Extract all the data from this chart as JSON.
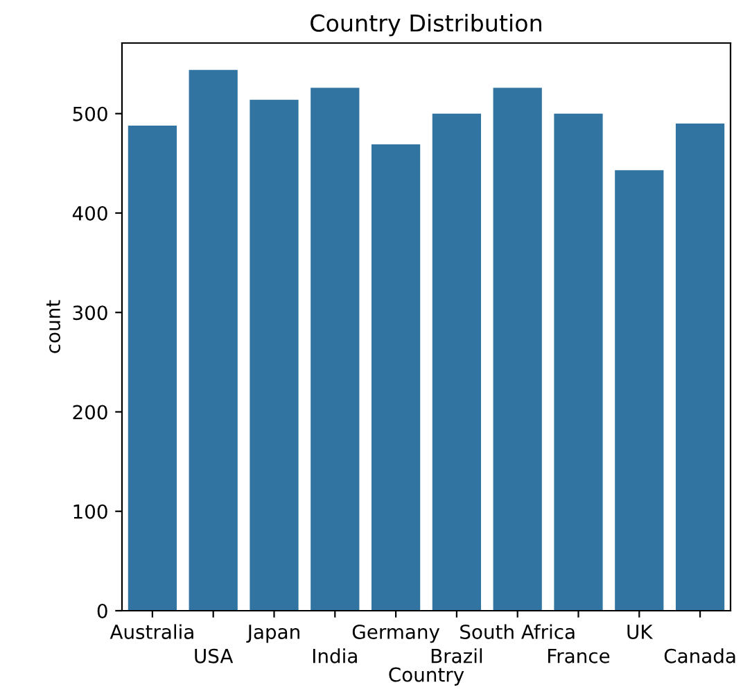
{
  "chart_data": {
    "type": "bar",
    "title": "Country Distribution",
    "xlabel": "Country",
    "ylabel": "count",
    "categories": [
      "Australia",
      "USA",
      "Japan",
      "India",
      "Germany",
      "Brazil",
      "South Africa",
      "France",
      "UK",
      "Canada"
    ],
    "values": [
      488,
      544,
      514,
      526,
      469,
      500,
      526,
      500,
      443,
      490
    ],
    "color": "#3274a1",
    "ylim": [
      0,
      571
    ],
    "yticks": [
      0,
      100,
      200,
      300,
      400,
      500
    ],
    "grid": false
  }
}
